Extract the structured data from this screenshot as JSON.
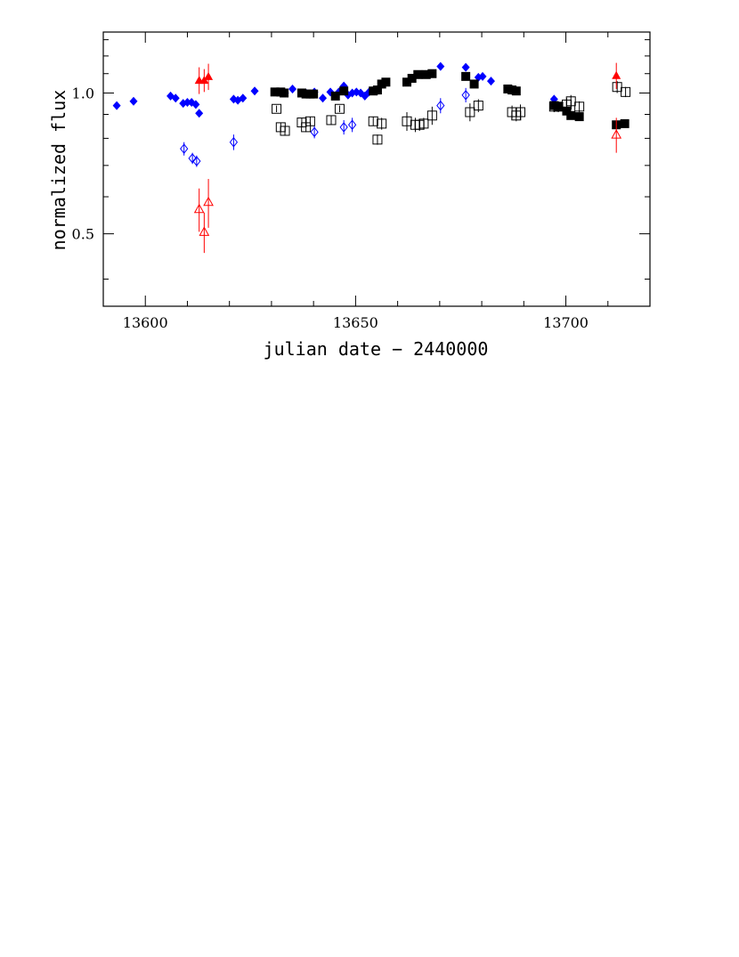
{
  "chart_data": {
    "type": "scatter",
    "title": "",
    "xlabel": "julian date − 2440000",
    "ylabel": "normalized flux",
    "xlim": [
      13590,
      13720
    ],
    "ylim": [
      0.35,
      1.35
    ],
    "y_scale": "log",
    "xticks": [
      13600,
      13650,
      13700
    ],
    "xtick_labels": [
      "13600",
      "13650",
      "13700"
    ],
    "yticks": [
      0.5,
      1.0
    ],
    "ytick_labels": [
      "0.5",
      "1.0"
    ],
    "grid": false,
    "legend": "none",
    "series": [
      {
        "marker": "filled-diamond",
        "color": "#0000ff",
        "points": [
          [
            13593.2,
            0.94
          ],
          [
            13597.2,
            0.96
          ],
          [
            13606.0,
            0.985
          ],
          [
            13607.2,
            0.975
          ],
          [
            13609.0,
            0.95
          ],
          [
            13610.0,
            0.955
          ],
          [
            13611.0,
            0.955
          ],
          [
            13612.0,
            0.945
          ],
          [
            13612.8,
            0.905
          ],
          [
            13621.0,
            0.97
          ],
          [
            13622.0,
            0.965
          ],
          [
            13623.2,
            0.975
          ],
          [
            13626.0,
            1.01
          ],
          [
            13633.2,
            1.0
          ],
          [
            13635.0,
            1.02
          ],
          [
            13638.2,
            1.0
          ],
          [
            13640.2,
            1.005
          ],
          [
            13642.2,
            0.975
          ],
          [
            13644.0,
            1.005
          ],
          [
            13646.0,
            1.005
          ],
          [
            13647.2,
            1.035
          ],
          [
            13648.2,
            0.99
          ],
          [
            13649.2,
            1.0
          ],
          [
            13650.2,
            1.005
          ],
          [
            13651.2,
            1.0
          ],
          [
            13652.2,
            0.985
          ],
          [
            13653.2,
            1.005
          ],
          [
            13655.0,
            1.01
          ],
          [
            13670.2,
            1.14
          ],
          [
            13676.2,
            1.135
          ],
          [
            13679.2,
            1.08
          ],
          [
            13680.2,
            1.085
          ],
          [
            13682.2,
            1.06
          ],
          [
            13697.2,
            0.97
          ]
        ]
      },
      {
        "marker": "filled-square",
        "color": "#000000",
        "points": [
          [
            13630.8,
            1.005
          ],
          [
            13632.2,
            1.005
          ],
          [
            13633.0,
            1.0
          ],
          [
            13637.2,
            1.0
          ],
          [
            13638.2,
            0.995
          ],
          [
            13639.2,
            0.995
          ],
          [
            13640.0,
            0.995
          ],
          [
            13645.2,
            0.985
          ],
          [
            13647.2,
            1.01
          ],
          [
            13654.2,
            1.01
          ],
          [
            13655.2,
            1.015
          ],
          [
            13656.2,
            1.045
          ],
          [
            13657.2,
            1.055
          ],
          [
            13662.2,
            1.055
          ],
          [
            13663.4,
            1.075
          ],
          [
            13664.8,
            1.095
          ],
          [
            13666.8,
            1.095
          ],
          [
            13668.2,
            1.1
          ],
          [
            13676.2,
            1.085
          ],
          [
            13678.2,
            1.045
          ],
          [
            13686.2,
            1.02
          ],
          [
            13687.2,
            1.015
          ],
          [
            13688.2,
            1.01
          ],
          [
            13697.2,
            0.94
          ],
          [
            13698.2,
            0.935
          ],
          [
            13700.2,
            0.915
          ],
          [
            13701.2,
            0.895
          ],
          [
            13703.2,
            0.89
          ],
          [
            13712.0,
            0.855
          ],
          [
            13714.0,
            0.86
          ]
        ]
      },
      {
        "marker": "open-diamond-errorbar",
        "color": "#0000ff",
        "points": [
          [
            13609.2,
            0.76,
            0.025
          ],
          [
            13611.2,
            0.725,
            0.02
          ],
          [
            13612.2,
            0.715,
            0.02
          ],
          [
            13621.0,
            0.785,
            0.03
          ],
          [
            13640.2,
            0.825,
            0.025
          ],
          [
            13647.2,
            0.845,
            0.03
          ],
          [
            13649.2,
            0.855,
            0.03
          ],
          [
            13670.2,
            0.94,
            0.035
          ],
          [
            13676.2,
            0.99,
            0.035
          ]
        ]
      },
      {
        "marker": "open-square-errorbar",
        "color": "#000000",
        "points": [
          [
            13631.2,
            0.925,
            0.015
          ],
          [
            13632.2,
            0.845,
            0.02
          ],
          [
            13633.2,
            0.83,
            0.02
          ],
          [
            13637.2,
            0.865,
            0.02
          ],
          [
            13638.2,
            0.845,
            0.02
          ],
          [
            13639.2,
            0.87,
            0.02
          ],
          [
            13644.2,
            0.875,
            0.02
          ],
          [
            13646.2,
            0.925,
            0.015
          ],
          [
            13654.2,
            0.87,
            0.02
          ],
          [
            13655.2,
            0.795,
            0.02
          ],
          [
            13656.2,
            0.86,
            0.025
          ],
          [
            13662.2,
            0.87,
            0.04
          ],
          [
            13664.2,
            0.855,
            0.03
          ],
          [
            13665.2,
            0.855,
            0.025
          ],
          [
            13666.2,
            0.86,
            0.025
          ],
          [
            13668.2,
            0.895,
            0.04
          ],
          [
            13677.2,
            0.91,
            0.04
          ],
          [
            13679.2,
            0.94,
            0.03
          ],
          [
            13687.2,
            0.91,
            0.03
          ],
          [
            13688.2,
            0.895,
            0.025
          ],
          [
            13689.2,
            0.91,
            0.035
          ],
          [
            13697.2,
            0.935,
            0.025
          ],
          [
            13698.2,
            0.935,
            0.025
          ],
          [
            13700.2,
            0.945,
            0.03
          ],
          [
            13701.2,
            0.96,
            0.03
          ],
          [
            13703.2,
            0.935,
            0.025
          ],
          [
            13712.2,
            1.03,
            0.03
          ],
          [
            13714.2,
            1.005,
            0.025
          ]
        ]
      },
      {
        "marker": "filled-triangle-errorbar",
        "color": "#ff0000",
        "points": [
          [
            13612.8,
            1.065,
            0.07
          ],
          [
            13614.0,
            1.065,
            0.06
          ],
          [
            13615.0,
            1.085,
            0.07
          ],
          [
            13712.0,
            1.09,
            0.07
          ]
        ]
      },
      {
        "marker": "open-triangle-errorbar",
        "color": "#ff0000",
        "points": [
          [
            13612.8,
            0.565,
            0.06
          ],
          [
            13614.0,
            0.505,
            0.05
          ],
          [
            13615.0,
            0.585,
            0.07
          ],
          [
            13712.0,
            0.815,
            0.07
          ]
        ]
      }
    ]
  }
}
